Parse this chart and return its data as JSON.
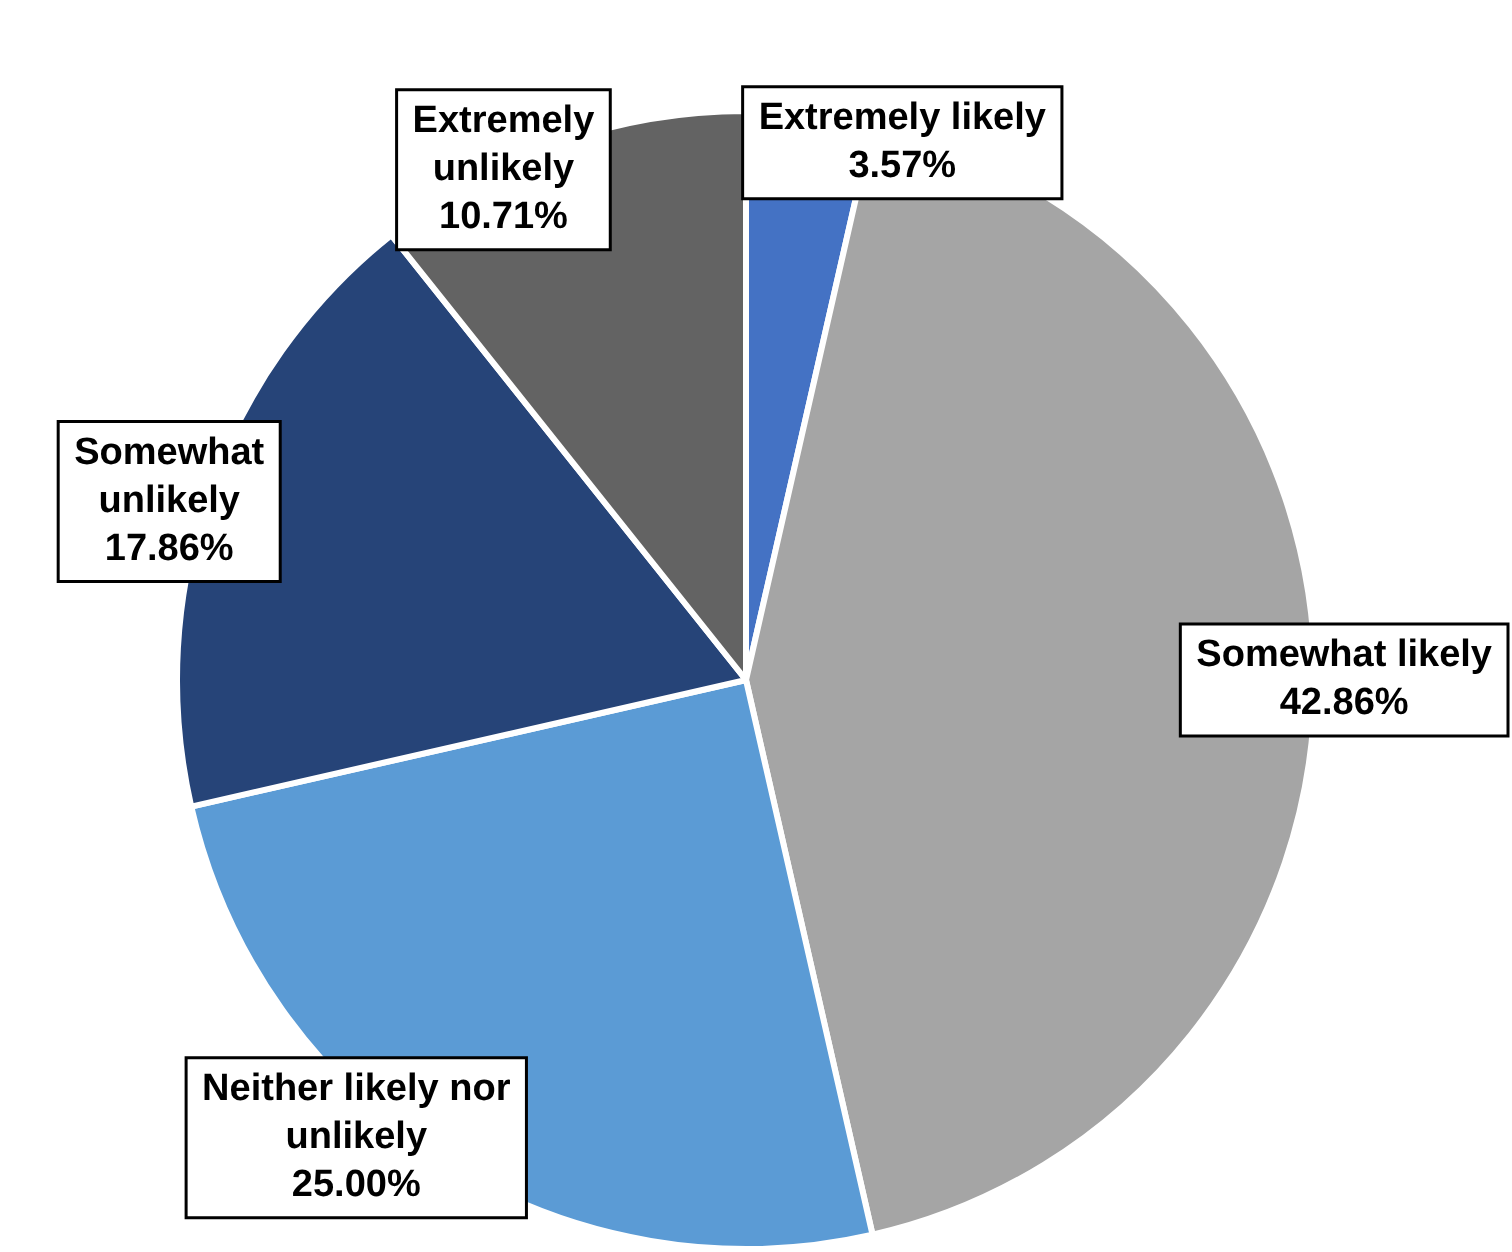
{
  "chart_data": {
    "type": "pie",
    "categories": [
      "Extremely likely",
      "Somewhat likely",
      "Neither likely nor unlikely",
      "Somewhat unlikely",
      "Extremely unlikely"
    ],
    "values": [
      3.57,
      42.86,
      25.0,
      17.86,
      10.71
    ],
    "value_labels": [
      "3.57%",
      "42.86%",
      "25.00%",
      "17.86%",
      "10.71%"
    ],
    "colors": [
      "#4472c4",
      "#a5a5a5",
      "#5b9bd5",
      "#264478",
      "#636363"
    ],
    "legend": false
  }
}
